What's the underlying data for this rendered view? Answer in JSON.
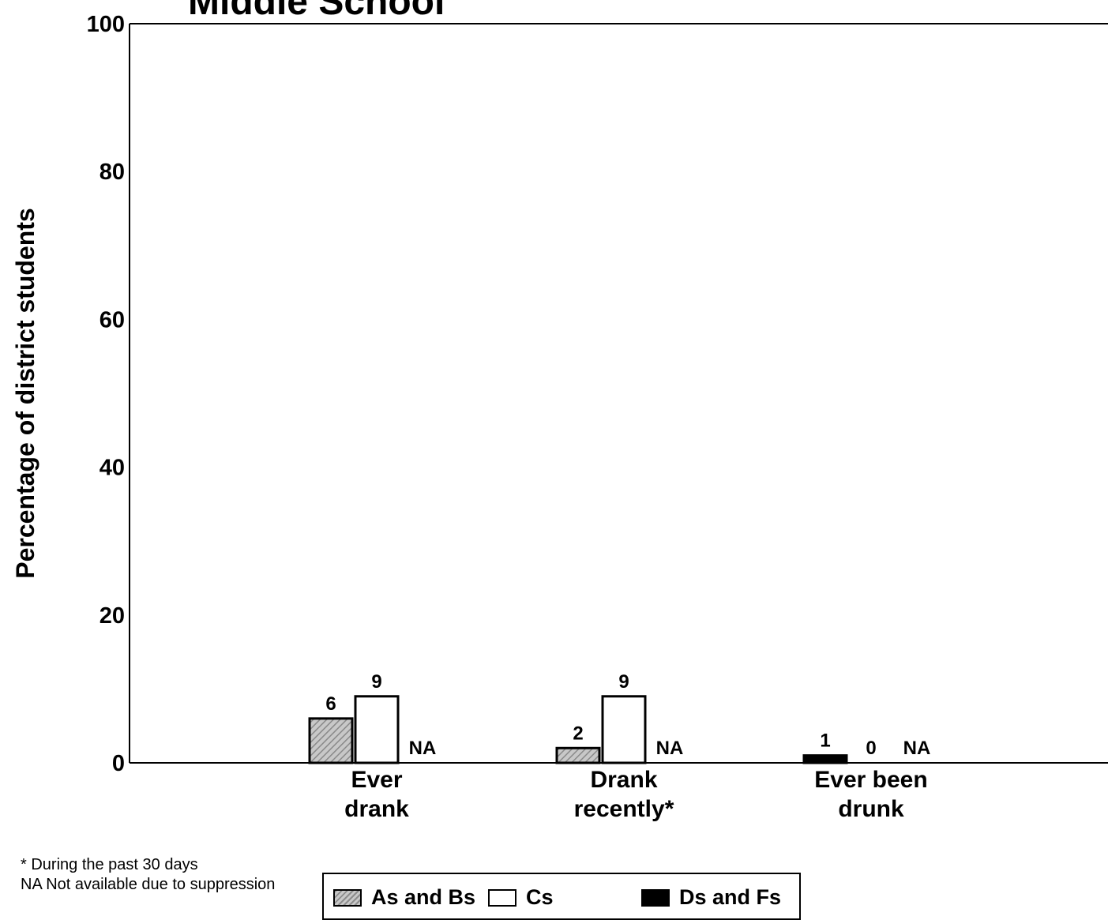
{
  "chart_data": {
    "type": "bar",
    "title": "Middle School",
    "ylabel": "Percentage of district students",
    "ylim": [
      0,
      100
    ],
    "yticks": [
      "0",
      "20",
      "40",
      "60",
      "80",
      "100"
    ],
    "categories": [
      [
        "Ever",
        "drank"
      ],
      [
        "Drank",
        "recently*"
      ],
      [
        "Ever been",
        "drunk"
      ]
    ],
    "series": [
      {
        "name": "As and Bs",
        "values": [
          6,
          2,
          1
        ],
        "labels": [
          "6",
          "2",
          "1"
        ],
        "fill": "hatch"
      },
      {
        "name": "Cs",
        "values": [
          9,
          9,
          0
        ],
        "labels": [
          "9",
          "9",
          "0"
        ],
        "fill": "#ffffff"
      },
      {
        "name": "Ds and Fs",
        "values": [
          null,
          null,
          null
        ],
        "labels": [
          "NA",
          "NA",
          "NA"
        ],
        "fill": "#000000"
      }
    ],
    "legend_position": "bottom"
  },
  "footnotes": {
    "line1": "* During the past 30 days",
    "line2": "NA Not available due to suppression"
  },
  "legend": {
    "item1": "As and Bs",
    "item2": "Cs",
    "item3": "Ds and Fs"
  }
}
